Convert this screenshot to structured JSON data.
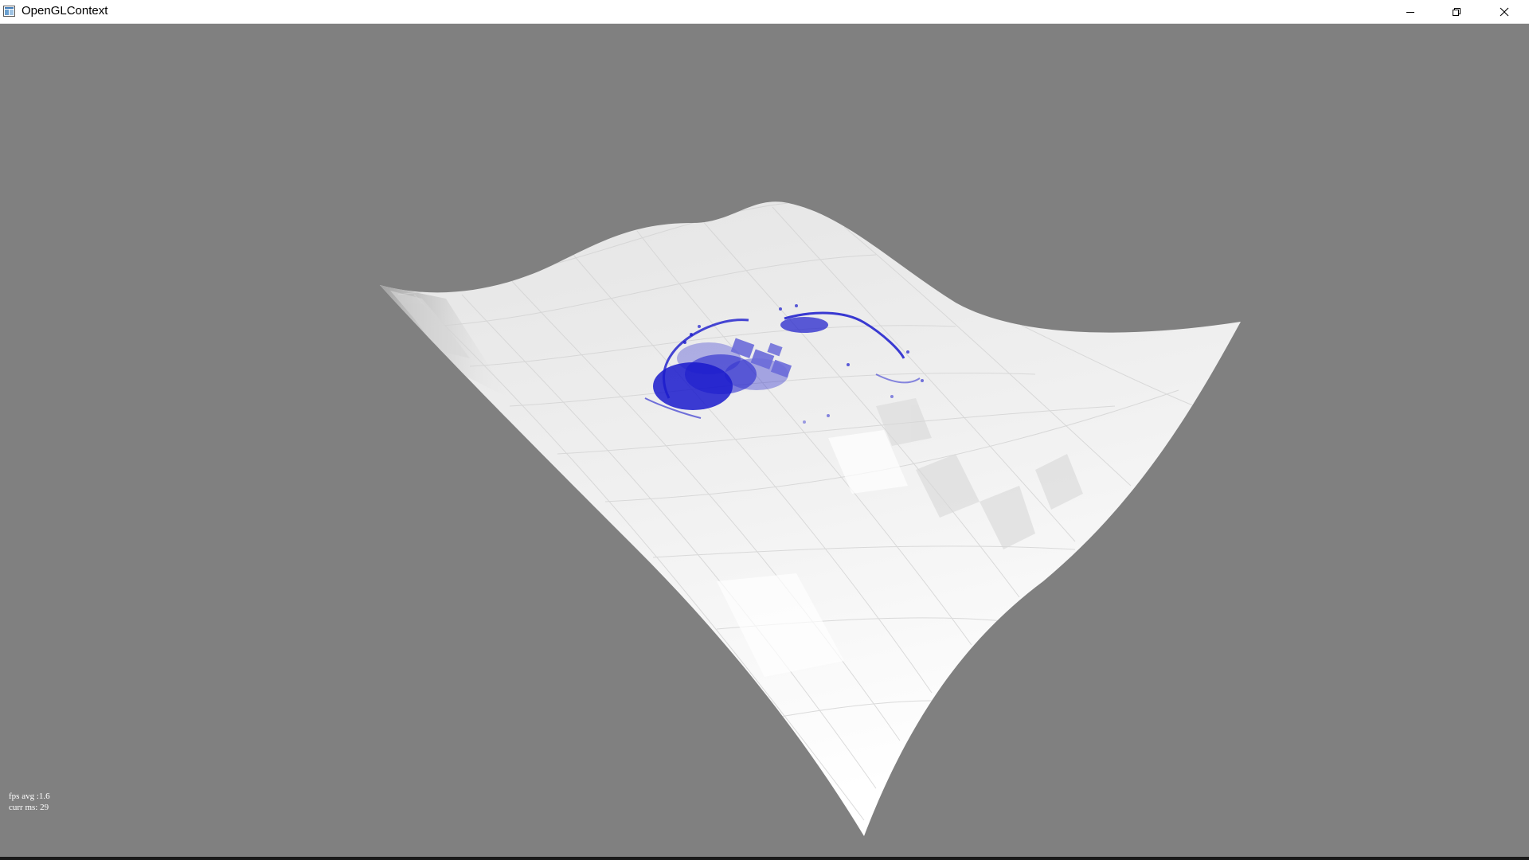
{
  "window": {
    "title": "OpenGLContext",
    "app_icon": "window-app-icon",
    "controls": {
      "minimize_icon": "minimize-icon",
      "maximize_icon": "restore-icon",
      "close_icon": "close-icon"
    }
  },
  "viewport": {
    "background_color": "#808080",
    "surface_color": "#f2f2f2",
    "particle_color": "#1a1acc",
    "stats": {
      "fps_avg": "fps avg :1.6",
      "curr_ms": "curr ms: 29"
    }
  }
}
